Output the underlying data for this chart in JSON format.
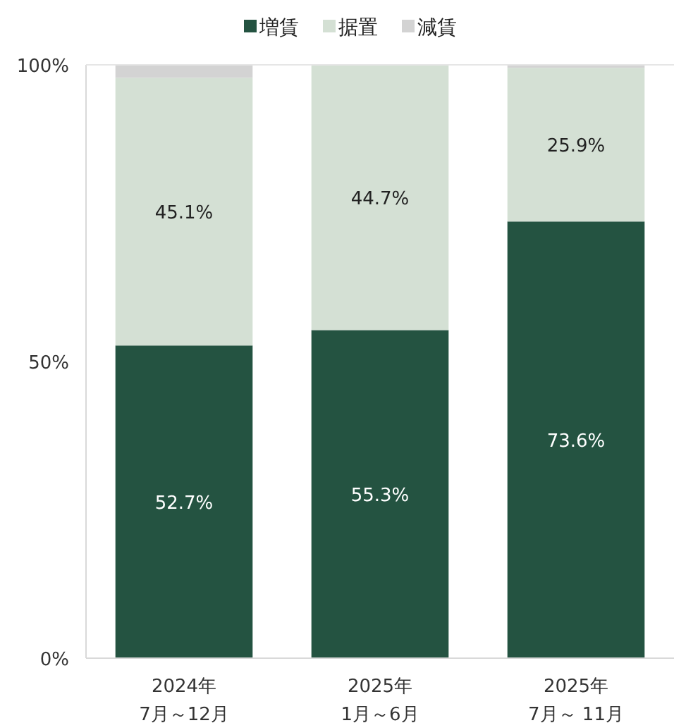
{
  "chart_data": {
    "type": "bar",
    "stacked": true,
    "categories": [
      "2024年\n7月～12月",
      "2025年\n1月～6月",
      "2025年\n7月～ 11月"
    ],
    "series": [
      {
        "name": "増賃",
        "color": "#245341",
        "values": [
          52.7,
          55.3,
          73.6
        ],
        "value_labels": [
          "52.7%",
          "55.3%",
          "73.6%"
        ]
      },
      {
        "name": "据置",
        "color": "#d4e0d4",
        "values": [
          45.1,
          44.7,
          25.9
        ],
        "value_labels": [
          "45.1%",
          "44.7%",
          "25.9%"
        ]
      },
      {
        "name": "減賃",
        "color": "#d3d3d3",
        "values": [
          2.2,
          0,
          0.5
        ]
      }
    ],
    "ylim": [
      0,
      100
    ],
    "yticks": [
      {
        "value": 0,
        "label": "0%"
      },
      {
        "value": 50,
        "label": "50%"
      },
      {
        "value": 100,
        "label": "100%"
      }
    ],
    "legend": "top",
    "grid": false
  }
}
